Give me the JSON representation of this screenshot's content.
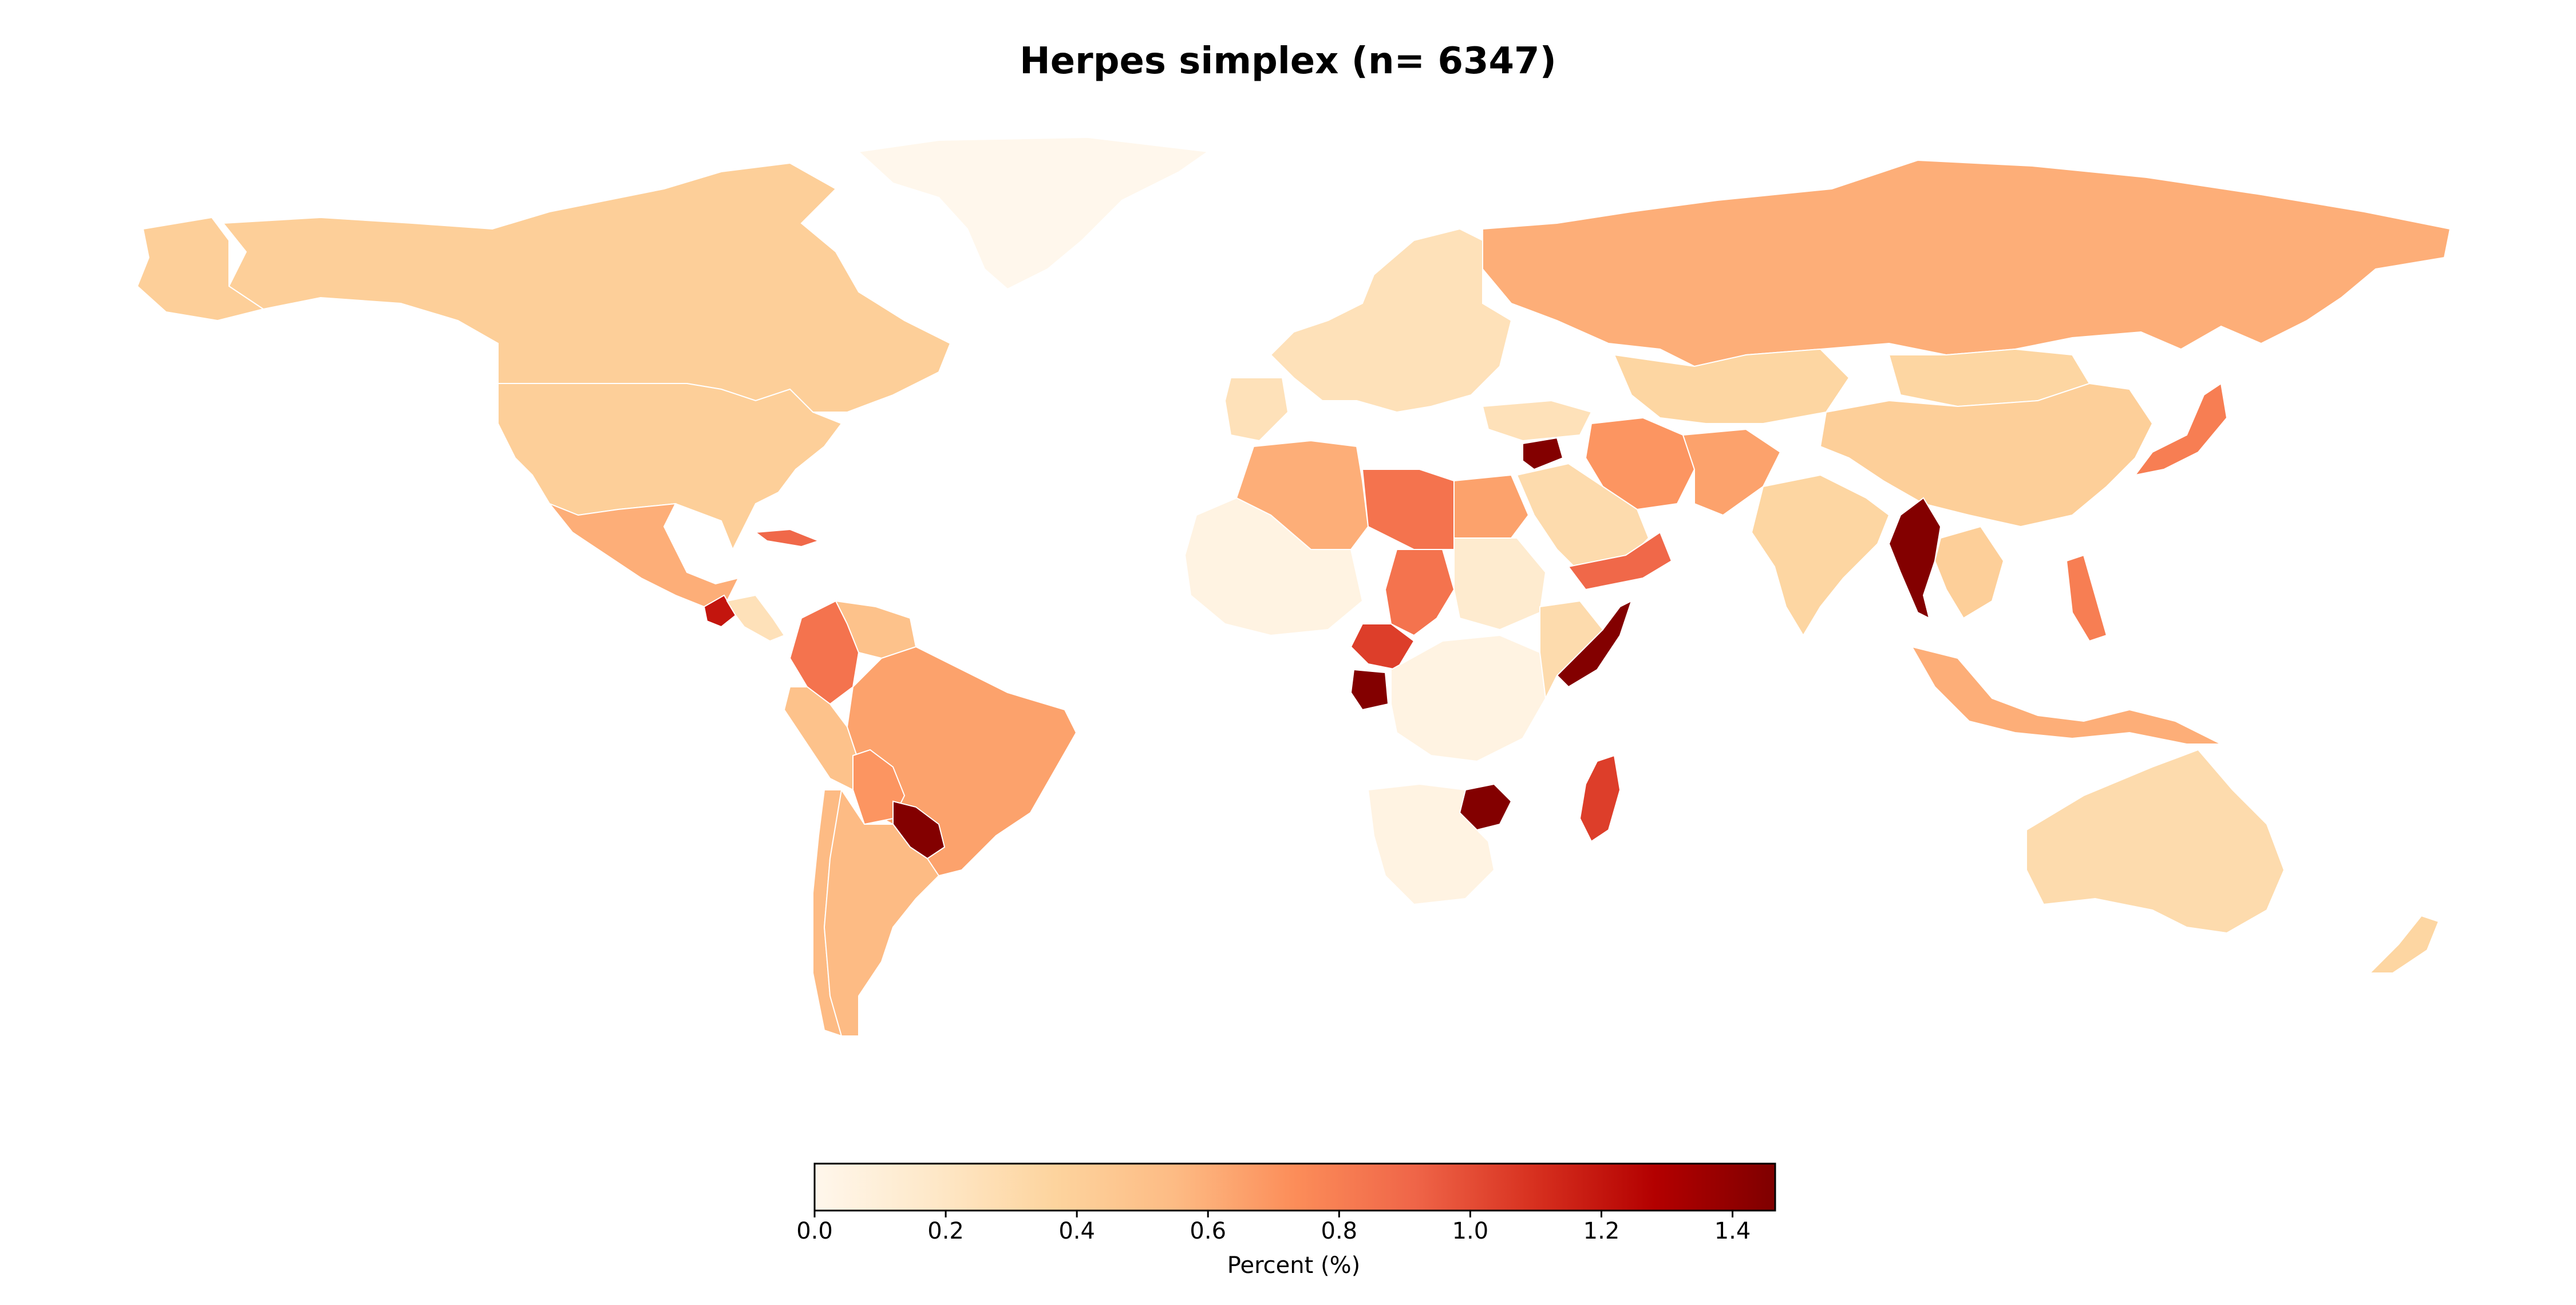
{
  "title": "Herpes simplex (n= 6347)",
  "colorbar": {
    "label": "Percent (%)",
    "min": 0.0,
    "max": 1.465,
    "ticks": [
      "0.0",
      "0.2",
      "0.4",
      "0.6",
      "0.8",
      "1.0",
      "1.2",
      "1.4"
    ],
    "tick_values": [
      0.0,
      0.2,
      0.4,
      0.6,
      0.8,
      1.0,
      1.2,
      1.4
    ],
    "colormap": "OrRd",
    "stops": [
      "#fff7ec",
      "#fee8c8",
      "#fdd49e",
      "#fdbb84",
      "#fc8d59",
      "#ef6548",
      "#d7301f",
      "#b30000",
      "#7f0000"
    ]
  },
  "regions": [
    {
      "name": "Greenland",
      "value": 0.0
    },
    {
      "name": "Canada",
      "value": 0.4
    },
    {
      "name": "United States",
      "value": 0.4
    },
    {
      "name": "Mexico",
      "value": 0.6
    },
    {
      "name": "Guatemala",
      "value": 1.2
    },
    {
      "name": "Cuba",
      "value": 0.9
    },
    {
      "name": "Colombia",
      "value": 0.85
    },
    {
      "name": "Venezuela",
      "value": 0.5
    },
    {
      "name": "Brazil",
      "value": 0.65
    },
    {
      "name": "Peru",
      "value": 0.5
    },
    {
      "name": "Bolivia",
      "value": 0.7
    },
    {
      "name": "Paraguay",
      "value": 1.45
    },
    {
      "name": "Argentina",
      "value": 0.55
    },
    {
      "name": "Chile",
      "value": 0.55
    },
    {
      "name": "Russia",
      "value": 0.6
    },
    {
      "name": "China",
      "value": 0.4
    },
    {
      "name": "Kazakhstan",
      "value": 0.35
    },
    {
      "name": "Mongolia",
      "value": 0.35
    },
    {
      "name": "Iran",
      "value": 0.7
    },
    {
      "name": "Afghanistan",
      "value": 0.65
    },
    {
      "name": "India",
      "value": 0.35
    },
    {
      "name": "Myanmar",
      "value": 1.45
    },
    {
      "name": "Japan",
      "value": 0.8
    },
    {
      "name": "Indonesia",
      "value": 0.6
    },
    {
      "name": "Philippines",
      "value": 0.8
    },
    {
      "name": "Australia",
      "value": 0.3
    },
    {
      "name": "New Zealand",
      "value": 0.35
    },
    {
      "name": "Algeria",
      "value": 0.6
    },
    {
      "name": "Libya",
      "value": 0.85
    },
    {
      "name": "Egypt",
      "value": 0.65
    },
    {
      "name": "Chad",
      "value": 0.85
    },
    {
      "name": "Cameroon",
      "value": 1.05
    },
    {
      "name": "Gabon",
      "value": 1.45
    },
    {
      "name": "Somalia",
      "value": 1.45
    },
    {
      "name": "Zimbabwe",
      "value": 1.45
    },
    {
      "name": "Madagascar",
      "value": 1.05
    },
    {
      "name": "Syria",
      "value": 1.45
    },
    {
      "name": "Yemen",
      "value": 0.9
    },
    {
      "name": "Saudi Arabia",
      "value": 0.3
    },
    {
      "name": "Sudan",
      "value": 0.15
    },
    {
      "name": "DR Congo",
      "value": 0.05
    },
    {
      "name": "South Africa",
      "value": 0.05
    },
    {
      "name": "Mali",
      "value": 0.05
    },
    {
      "name": "Europe",
      "value": 0.25
    }
  ]
}
